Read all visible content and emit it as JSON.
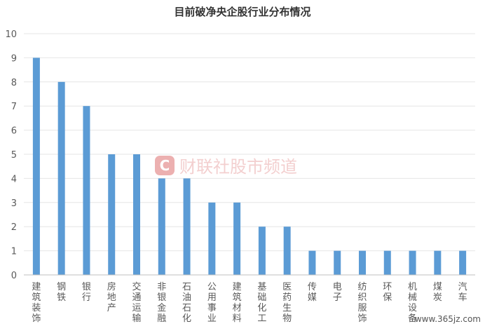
{
  "chart_data": {
    "type": "bar",
    "title": "目前破净央企股行业分布情况",
    "xlabel": "",
    "ylabel": "",
    "ylim": [
      0,
      10
    ],
    "yticks": [
      0,
      1,
      2,
      3,
      4,
      5,
      6,
      7,
      8,
      9,
      10
    ],
    "grid": true,
    "legend": "none",
    "categories": [
      "建筑装饰",
      "钢铁",
      "银行",
      "房地产",
      "交通运输",
      "非银金融",
      "石油石化",
      "公用事业",
      "建筑材料",
      "基础化工",
      "医药生物",
      "传媒",
      "电子",
      "纺织服饰",
      "环保",
      "机械设备",
      "煤炭",
      "汽车"
    ],
    "values": [
      9,
      8,
      7,
      5,
      5,
      4,
      4,
      3,
      3,
      2,
      2,
      1,
      1,
      1,
      1,
      1,
      1,
      1
    ],
    "bar_color": "#5b9bd5"
  },
  "watermark": {
    "icon_letter": "C",
    "text": "财联社股市频道"
  },
  "corner_watermark": "www.365jz.com"
}
